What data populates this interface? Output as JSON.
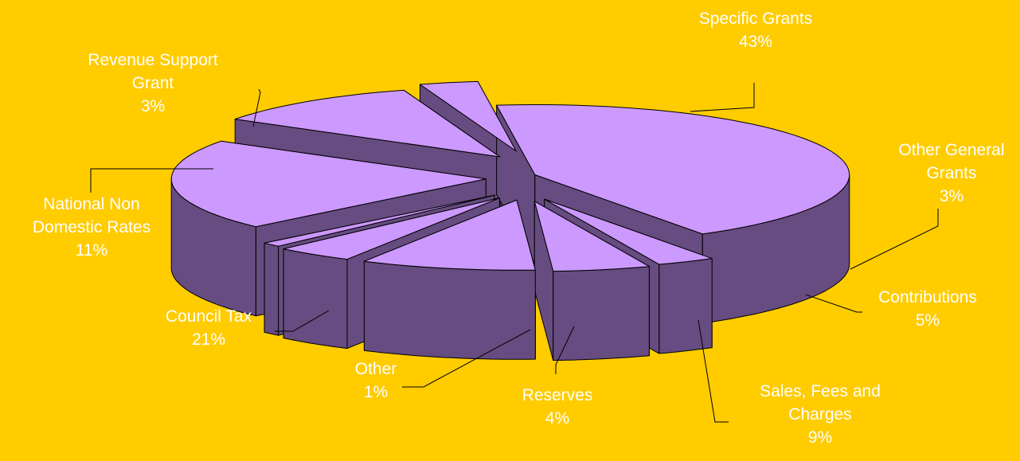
{
  "chart_data": {
    "type": "pie",
    "title": "",
    "unit": "%",
    "style": "3d-exploded",
    "colors": {
      "background": "#FFCC00",
      "slice_top": "#CC99FF",
      "slice_side": "#664C80",
      "outline": "#000000",
      "label_text": "#FFFFFF",
      "leader_line": "#000000"
    },
    "slices": [
      {
        "name": "Specific Grants",
        "label_lines": [
          "Specific Grants"
        ],
        "value": 43,
        "value_label": "43%"
      },
      {
        "name": "Other General Grants",
        "label_lines": [
          "Other General",
          "Grants"
        ],
        "value": 3,
        "value_label": "3%"
      },
      {
        "name": "Contributions",
        "label_lines": [
          "Contributions"
        ],
        "value": 5,
        "value_label": "5%"
      },
      {
        "name": "Sales, Fees and Charges",
        "label_lines": [
          "Sales, Fees and",
          "Charges"
        ],
        "value": 9,
        "value_label": "9%"
      },
      {
        "name": "Reserves",
        "label_lines": [
          "Reserves"
        ],
        "value": 4,
        "value_label": "4%"
      },
      {
        "name": "Other",
        "label_lines": [
          "Other"
        ],
        "value": 1,
        "value_label": "1%"
      },
      {
        "name": "Council Tax",
        "label_lines": [
          "Council Tax"
        ],
        "value": 21,
        "value_label": "21%"
      },
      {
        "name": "National Non Domestic Rates",
        "label_lines": [
          "National Non",
          "Domestic Rates"
        ],
        "value": 11,
        "value_label": "11%"
      },
      {
        "name": "Revenue Support Grant",
        "label_lines": [
          "Revenue Support",
          "Grant"
        ],
        "value": 3,
        "value_label": "3%"
      }
    ]
  }
}
